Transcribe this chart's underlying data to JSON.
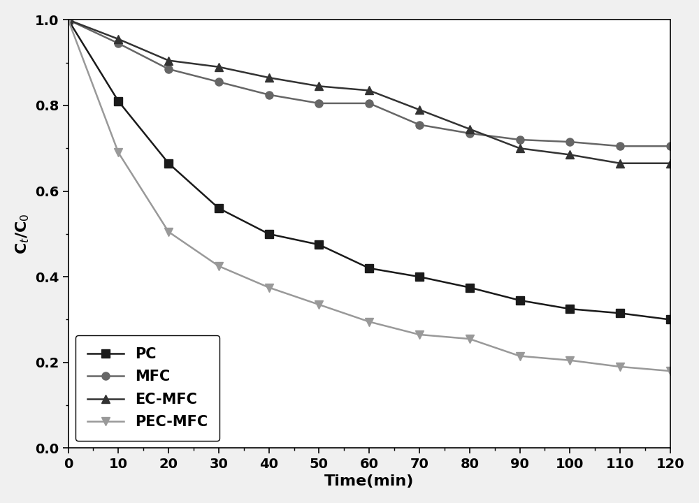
{
  "series": [
    {
      "key": "PC",
      "x": [
        0,
        10,
        20,
        30,
        40,
        50,
        60,
        70,
        80,
        90,
        100,
        110,
        120
      ],
      "y": [
        1.0,
        0.81,
        0.665,
        0.56,
        0.5,
        0.475,
        0.42,
        0.4,
        0.375,
        0.345,
        0.325,
        0.315,
        0.3
      ],
      "color": "#1a1a1a",
      "marker": "s",
      "label": "PC"
    },
    {
      "key": "MFC",
      "x": [
        0,
        10,
        20,
        30,
        40,
        50,
        60,
        70,
        80,
        90,
        100,
        110,
        120
      ],
      "y": [
        1.0,
        0.945,
        0.885,
        0.855,
        0.825,
        0.805,
        0.805,
        0.755,
        0.735,
        0.72,
        0.715,
        0.705,
        0.705
      ],
      "color": "#666666",
      "marker": "o",
      "label": "MFC"
    },
    {
      "key": "EC-MFC",
      "x": [
        0,
        10,
        20,
        30,
        40,
        50,
        60,
        70,
        80,
        90,
        100,
        110,
        120
      ],
      "y": [
        1.0,
        0.955,
        0.905,
        0.89,
        0.865,
        0.845,
        0.835,
        0.79,
        0.745,
        0.7,
        0.685,
        0.665,
        0.665
      ],
      "color": "#333333",
      "marker": "^",
      "label": "EC-MFC"
    },
    {
      "key": "PEC-MFC",
      "x": [
        0,
        10,
        20,
        30,
        40,
        50,
        60,
        70,
        80,
        90,
        100,
        110,
        120
      ],
      "y": [
        1.0,
        0.69,
        0.505,
        0.425,
        0.375,
        0.335,
        0.295,
        0.265,
        0.255,
        0.215,
        0.205,
        0.19,
        0.18
      ],
      "color": "#999999",
      "marker": "v",
      "label": "PEC-MFC"
    }
  ],
  "xlabel": "Time(min)",
  "ylabel": "C$_{t}$/C$_{0}$",
  "xlim": [
    0,
    120
  ],
  "ylim": [
    0.0,
    1.0
  ],
  "xticks": [
    0,
    10,
    20,
    30,
    40,
    50,
    60,
    70,
    80,
    90,
    100,
    110,
    120
  ],
  "yticks": [
    0.0,
    0.2,
    0.4,
    0.6,
    0.8,
    1.0
  ],
  "legend_loc": "lower left",
  "markersize": 8,
  "linewidth": 1.8,
  "figsize": [
    10.0,
    7.2
  ],
  "dpi": 100
}
